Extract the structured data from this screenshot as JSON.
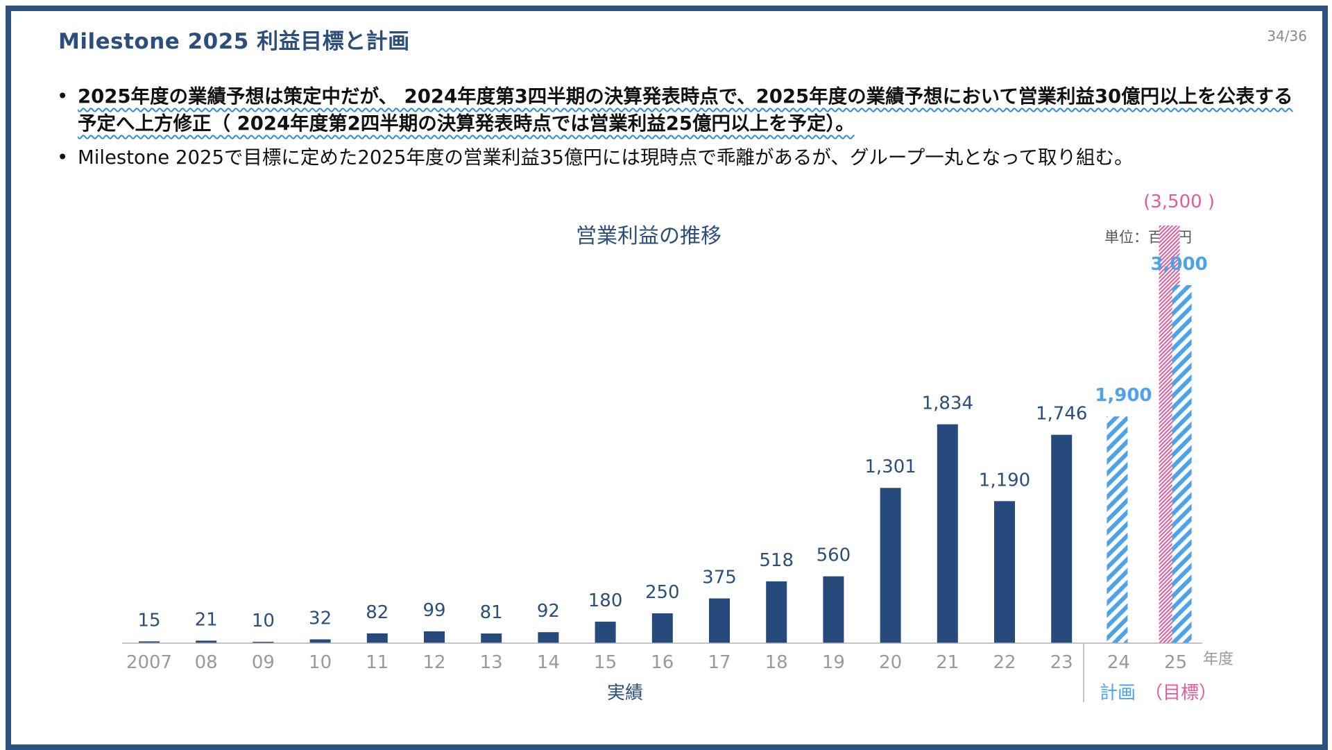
{
  "slide": {
    "title": "Milestone 2025 利益目標と計画",
    "page_number": "34/36",
    "bullets": [
      "2025年度の業績予想は策定中だが、 2024年度第3四半期の決算発表時点で、2025年度の業績予想において営業利益30億円以上を公表する予定へ上方修正（ 2024年度第2四半期の決算発表時点では営業利益25億円以上を予定）。",
      "Milestone 2025で目標に定めた2025年度の営業利益35億円には現時点で乖離があるが、グループ一丸となって取り組む。"
    ]
  },
  "colors": {
    "frame": "#2e5280",
    "title": "#2b4e7c",
    "actual_bar": "#264a7c",
    "plan_bar": "#4da3ea",
    "target_bar": "#e15b9b",
    "axis_text": "#9a9a9a",
    "underline": "#2a8fd8"
  },
  "chart_data": {
    "type": "bar",
    "title": "営業利益の推移",
    "unit_label": "単位：百万円",
    "x_axis_suffix": "年度",
    "ylim": [
      0,
      3600
    ],
    "categories": [
      "2007",
      "08",
      "09",
      "10",
      "11",
      "12",
      "13",
      "14",
      "15",
      "16",
      "17",
      "18",
      "19",
      "20",
      "21",
      "22",
      "23",
      "24",
      "25"
    ],
    "series": [
      {
        "name": "実績",
        "style": "solid",
        "values": [
          15,
          21,
          10,
          32,
          82,
          99,
          81,
          92,
          180,
          250,
          375,
          518,
          560,
          1301,
          1834,
          1190,
          1746,
          null,
          null
        ],
        "labels": [
          "15",
          "21",
          "10",
          "32",
          "82",
          "99",
          "81",
          "92",
          "180",
          "250",
          "375",
          "518",
          "560",
          "1,301",
          "1,834",
          "1,190",
          "1,746",
          "",
          ""
        ]
      },
      {
        "name": "計画",
        "style": "hatched",
        "values": [
          null,
          null,
          null,
          null,
          null,
          null,
          null,
          null,
          null,
          null,
          null,
          null,
          null,
          null,
          null,
          null,
          null,
          1900,
          3000
        ],
        "labels": [
          "",
          "",
          "",
          "",
          "",
          "",
          "",
          "",
          "",
          "",
          "",
          "",
          "",
          "",
          "",
          "",
          "",
          "1,900",
          "3,000"
        ]
      },
      {
        "name": "（目標）",
        "style": "hatched",
        "values": [
          null,
          null,
          null,
          null,
          null,
          null,
          null,
          null,
          null,
          null,
          null,
          null,
          null,
          null,
          null,
          null,
          null,
          null,
          3500
        ],
        "labels": [
          "",
          "",
          "",
          "",
          "",
          "",
          "",
          "",
          "",
          "",
          "",
          "",
          "",
          "",
          "",
          "",
          "",
          "",
          "(3,500 )"
        ]
      }
    ],
    "group_labels": [
      "実績",
      "計画",
      "（目標）"
    ],
    "grid": false,
    "legend": "none"
  }
}
